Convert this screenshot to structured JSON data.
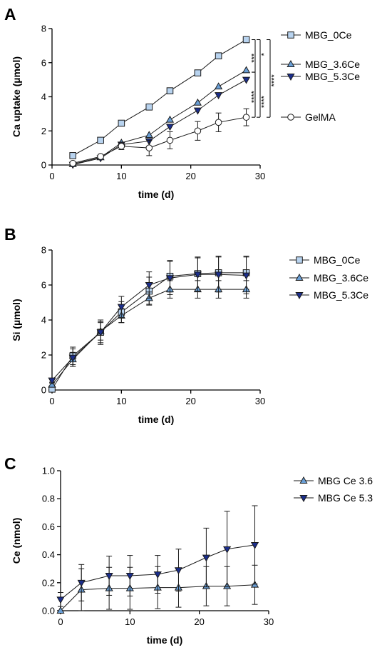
{
  "chart_data": [
    {
      "panel_label": "A",
      "type": "line",
      "xlabel": "time (d)",
      "ylabel": "Ca uptake (µmol)",
      "xlim": [
        0,
        30
      ],
      "ylim": [
        0,
        8
      ],
      "xticks": [
        0,
        10,
        20,
        30
      ],
      "yticks": [
        0,
        2,
        4,
        6,
        8
      ],
      "legend_position": "right",
      "series": [
        {
          "name": "MBG_0Ce",
          "marker": "square",
          "fill": "#b8d3ef",
          "x": [
            3,
            7,
            10,
            14,
            17,
            21,
            24,
            28
          ],
          "y": [
            0.55,
            1.45,
            2.45,
            3.4,
            4.35,
            5.4,
            6.4,
            7.35
          ],
          "err": [
            0,
            0,
            0,
            0,
            0,
            0,
            0,
            0
          ]
        },
        {
          "name": "MBG_3.6Ce",
          "marker": "triangle-up",
          "fill": "#6a9fd6",
          "x": [
            3,
            7,
            10,
            14,
            17,
            21,
            24,
            28
          ],
          "y": [
            0.05,
            0.45,
            1.3,
            1.75,
            2.65,
            3.65,
            4.6,
            5.55
          ],
          "err": [
            0,
            0,
            0,
            0,
            0,
            0,
            0,
            0
          ]
        },
        {
          "name": "MBG_5.3Ce",
          "marker": "triangle-down",
          "fill": "#1b2e8c",
          "x": [
            3,
            7,
            10,
            14,
            17,
            21,
            24,
            28
          ],
          "y": [
            0.02,
            0.4,
            1.2,
            1.4,
            2.25,
            3.2,
            4.1,
            5.0
          ],
          "err": [
            0,
            0,
            0,
            0,
            0,
            0,
            0,
            0
          ]
        },
        {
          "name": "GelMA",
          "marker": "circle",
          "fill": "#ffffff",
          "x": [
            3,
            7,
            10,
            14,
            17,
            21,
            24,
            28
          ],
          "y": [
            0.1,
            0.5,
            1.1,
            1.0,
            1.45,
            2.0,
            2.5,
            2.8
          ],
          "err": [
            0.05,
            0.1,
            0.2,
            0.45,
            0.5,
            0.55,
            0.55,
            0.5
          ]
        }
      ],
      "significance": [
        "***",
        "*",
        "****",
        "****",
        "****"
      ]
    },
    {
      "panel_label": "B",
      "type": "line",
      "xlabel": "time (d)",
      "ylabel": "Si (µmol)",
      "xlim": [
        0,
        30
      ],
      "ylim": [
        0,
        8
      ],
      "xticks": [
        0,
        10,
        20,
        30
      ],
      "yticks": [
        0,
        2,
        4,
        6,
        8
      ],
      "legend_position": "right",
      "series": [
        {
          "name": "MBG_0Ce",
          "marker": "square",
          "fill": "#b8d3ef",
          "x": [
            0,
            3,
            7,
            10,
            14,
            17,
            21,
            24,
            28
          ],
          "y": [
            0.05,
            1.95,
            3.3,
            4.45,
            5.65,
            6.5,
            6.65,
            6.7,
            6.7
          ],
          "err": [
            0.05,
            0.5,
            0.7,
            0.6,
            0.8,
            0.9,
            0.95,
            0.95,
            0.95
          ]
        },
        {
          "name": "MBG_3.6Ce",
          "marker": "triangle-up",
          "fill": "#6a9fd6",
          "x": [
            0,
            3,
            7,
            10,
            14,
            17,
            21,
            24,
            28
          ],
          "y": [
            0.3,
            1.75,
            3.35,
            4.25,
            5.25,
            5.75,
            5.75,
            5.75,
            5.75
          ],
          "err": [
            0.1,
            0.4,
            0.5,
            0.4,
            0.35,
            0.5,
            0.5,
            0.5,
            0.5
          ]
        },
        {
          "name": "MBG_5.3Ce",
          "marker": "triangle-down",
          "fill": "#1b2e8c",
          "x": [
            0,
            3,
            7,
            10,
            14,
            17,
            21,
            24,
            28
          ],
          "y": [
            0.55,
            1.85,
            3.3,
            4.75,
            6.0,
            6.4,
            6.6,
            6.6,
            6.55
          ],
          "err": [
            0.1,
            0.5,
            0.6,
            0.6,
            0.75,
            0.95,
            0.95,
            1.0,
            1.05
          ]
        }
      ]
    },
    {
      "panel_label": "C",
      "type": "line",
      "xlabel": "time (d)",
      "ylabel": "Ce (nmol)",
      "xlim": [
        0,
        30
      ],
      "ylim": [
        0,
        1.0
      ],
      "xticks": [
        0,
        10,
        20,
        30
      ],
      "yticks": [
        0.0,
        0.2,
        0.4,
        0.6,
        0.8,
        1.0
      ],
      "ytick_labels": [
        "0.0",
        "0.2",
        "0.4",
        "0.6",
        "0.8",
        "1.0"
      ],
      "legend_position": "top-right",
      "series": [
        {
          "name": "MBG Ce 3.6",
          "marker": "triangle-up",
          "fill": "#6a9fd6",
          "x": [
            0,
            3,
            7,
            10,
            14,
            17,
            21,
            24,
            28
          ],
          "y": [
            0.0,
            0.15,
            0.16,
            0.16,
            0.165,
            0.165,
            0.175,
            0.175,
            0.185
          ],
          "err": [
            0.0,
            0.15,
            0.15,
            0.15,
            0.15,
            0.14,
            0.14,
            0.14,
            0.14
          ]
        },
        {
          "name": "MBG Ce 5.3",
          "marker": "triangle-down",
          "fill": "#1b2e8c",
          "x": [
            0,
            3,
            7,
            10,
            14,
            17,
            21,
            24,
            28
          ],
          "y": [
            0.08,
            0.2,
            0.25,
            0.25,
            0.26,
            0.29,
            0.38,
            0.44,
            0.47
          ],
          "err": [
            0.05,
            0.13,
            0.14,
            0.145,
            0.135,
            0.15,
            0.21,
            0.27,
            0.28
          ]
        }
      ]
    }
  ]
}
